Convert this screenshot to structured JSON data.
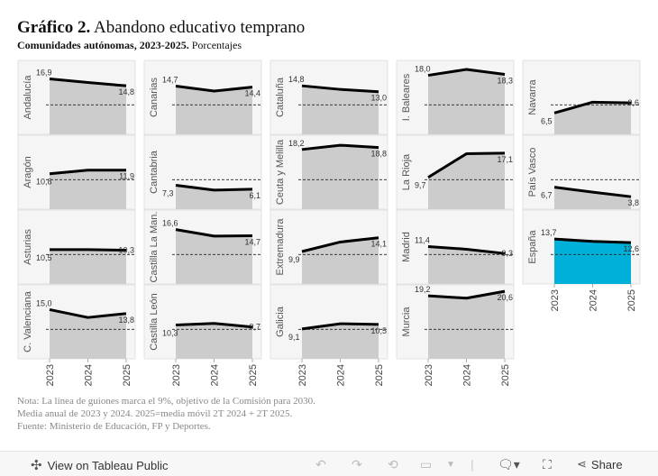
{
  "header": {
    "title_bold": "Gráfico 2.",
    "title_rest": "Abandono educativo temprano",
    "subtitle_bold": "Comunidades autónomas, 2023-2025.",
    "subtitle_rest": "Porcentajes"
  },
  "chart_data": {
    "type": "area",
    "title": "Abandono educativo temprano",
    "x": [
      "2023",
      "2024",
      "2025"
    ],
    "ylim": [
      0,
      22
    ],
    "reference_line": 9,
    "panels": [
      {
        "name": "Andalucía",
        "values": [
          16.9,
          15.8,
          14.8
        ],
        "first_label": "16,9",
        "last_label": "14,8"
      },
      {
        "name": "Canarias",
        "values": [
          14.7,
          13.2,
          14.4
        ],
        "first_label": "14,7",
        "last_label": "14,4"
      },
      {
        "name": "Cataluña",
        "values": [
          14.8,
          13.7,
          13.0
        ],
        "first_label": "14,8",
        "last_label": "13,0"
      },
      {
        "name": "I. Baleares",
        "values": [
          18.0,
          19.8,
          18.3
        ],
        "first_label": "18,0",
        "last_label": "18,3"
      },
      {
        "name": "Navarra",
        "values": [
          6.5,
          9.8,
          9.6
        ],
        "first_label": "6,5",
        "last_label": "9,6"
      },
      {
        "name": "Aragón",
        "values": [
          10.8,
          11.9,
          11.9
        ],
        "first_label": "10,8",
        "last_label": "11,9"
      },
      {
        "name": "Cantabria",
        "values": [
          7.3,
          5.8,
          6.1
        ],
        "first_label": "7,3",
        "last_label": "6,1"
      },
      {
        "name": "Ceuta y Melilla",
        "values": [
          18.2,
          19.5,
          18.8
        ],
        "first_label": "18,2",
        "last_label": "18,8"
      },
      {
        "name": "La Rioja",
        "values": [
          9.7,
          16.9,
          17.1
        ],
        "first_label": "9,7",
        "last_label": "17,1"
      },
      {
        "name": "País Vasco",
        "values": [
          6.7,
          5.2,
          3.8
        ],
        "first_label": "6,7",
        "last_label": "3,8"
      },
      {
        "name": "Asturias",
        "values": [
          10.5,
          10.5,
          10.3
        ],
        "first_label": "10,5",
        "last_label": "10,3"
      },
      {
        "name": "Castilla La Man.",
        "values": [
          16.6,
          14.6,
          14.7
        ],
        "first_label": "16,6",
        "last_label": "14,7"
      },
      {
        "name": "Extremadura",
        "values": [
          9.9,
          12.8,
          14.1
        ],
        "first_label": "9,9",
        "last_label": "14,1"
      },
      {
        "name": "Madrid",
        "values": [
          11.4,
          10.6,
          9.3
        ],
        "first_label": "11,4",
        "last_label": "9,3"
      },
      {
        "name": "España",
        "values": [
          13.7,
          13.0,
          12.6
        ],
        "first_label": "13,7",
        "last_label": "12,6",
        "highlight": true
      },
      {
        "name": "C. Valenciana",
        "values": [
          15.0,
          12.6,
          13.8
        ],
        "first_label": "15,0",
        "last_label": "13,8"
      },
      {
        "name": "Castilla León",
        "values": [
          10.3,
          10.8,
          9.7
        ],
        "first_label": "10,3",
        "last_label": "9,7"
      },
      {
        "name": "Galicia",
        "values": [
          9.1,
          10.7,
          10.5
        ],
        "first_label": "9,1",
        "last_label": "10,5"
      },
      {
        "name": "Murcia",
        "values": [
          19.2,
          18.5,
          20.6
        ],
        "first_label": "19,2",
        "last_label": "20,6"
      }
    ],
    "colors": {
      "area": "#cccccc",
      "highlight": "#00b0d8",
      "line": "#000000",
      "panel_bg": "#f5f5f5"
    }
  },
  "notes": [
    "Nota: La línea de guiones marca el 9%, objetivo de la Comisión para 2030.",
    "Media anual de 2023 y 2024. 2025=media móvil 2T 2024 + 2T 2025.",
    "Fuente: Ministerio de Educación, FP y Deportes."
  ],
  "footer": {
    "view_link": "View on Tableau Public",
    "share_label": "Share"
  }
}
